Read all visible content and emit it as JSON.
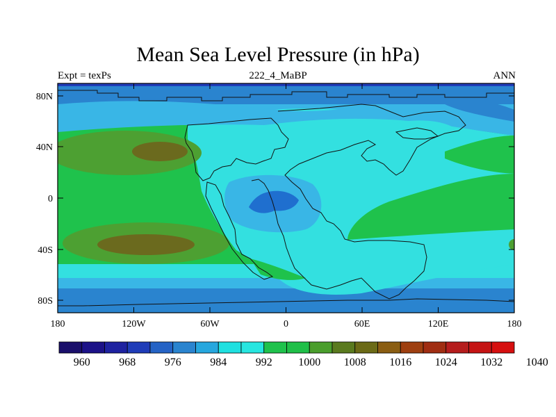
{
  "title": "Mean Sea Level Pressure (in hPa)",
  "subtitle_left": "Expt = texPs",
  "subtitle_center": "222_4_MaBP",
  "subtitle_right": "ANN",
  "x_tick_labels": [
    "180",
    "120W",
    "60W",
    "0",
    "60E",
    "120E",
    "180"
  ],
  "y_tick_labels": [
    "80N",
    "40N",
    "0",
    "40S",
    "80S"
  ],
  "colorbar": {
    "labels": [
      "960",
      "968",
      "976",
      "984",
      "992",
      "1000",
      "1008",
      "1016",
      "1024",
      "1032",
      "1040"
    ],
    "colors": [
      "#1a0f6b",
      "#1c1288",
      "#1e22a0",
      "#1f3cb8",
      "#2563c5",
      "#2a84cf",
      "#26a7de",
      "#1fe0e0",
      "#27e6e0",
      "#1fc24c",
      "#1fbf48",
      "#4a9e2c",
      "#5a7a1e",
      "#6b6a16",
      "#8a5d12",
      "#9e3f10",
      "#a02d12",
      "#b51d1d",
      "#c51414",
      "#d60f0f"
    ]
  },
  "palette": {
    "p_deep": "#1f6fcf",
    "p_low": "#2b8fd6",
    "p_mid_low": "#39b6e6",
    "p_1000": "#33e0e0",
    "p_1008": "#1fc24c",
    "p_1012": "#4da032",
    "p_1016": "#6b6a1e",
    "coast": "#111111"
  }
}
